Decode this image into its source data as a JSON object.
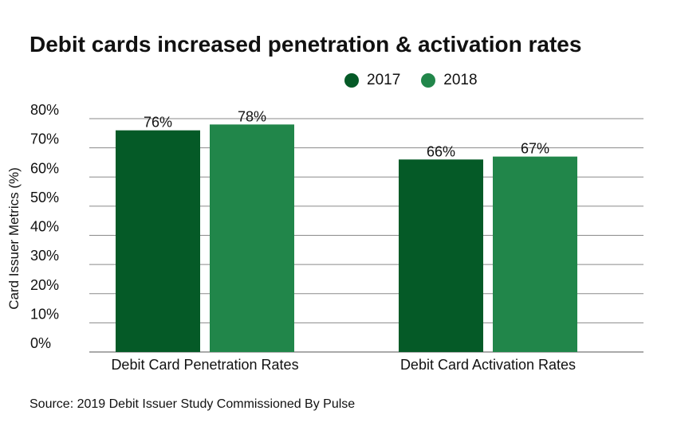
{
  "chart_data": {
    "type": "bar",
    "title": "Debit cards increased penetration & activation rates",
    "categories": [
      "Debit Card Penetration Rates",
      "Debit Card Activation Rates"
    ],
    "series": [
      {
        "name": "2017",
        "values": [
          76,
          66
        ],
        "labels": [
          "76%",
          "66%"
        ],
        "color": "#055a27"
      },
      {
        "name": "2018",
        "values": [
          78,
          67
        ],
        "labels": [
          "78%",
          "67%"
        ],
        "color": "#21864a"
      }
    ],
    "ylabel": "Card Issuer Metrics (%)",
    "xlabel": "",
    "ylim": [
      0,
      80
    ],
    "yticks": [
      0,
      10,
      20,
      30,
      40,
      50,
      60,
      70,
      80
    ],
    "ytick_labels": [
      "0%",
      "10%",
      "20%",
      "30%",
      "40%",
      "50%",
      "60%",
      "70%",
      "80%"
    ],
    "grid": true,
    "legend_position": "top-right"
  },
  "source": "Source: 2019 Debit Issuer Study Commissioned By Pulse"
}
